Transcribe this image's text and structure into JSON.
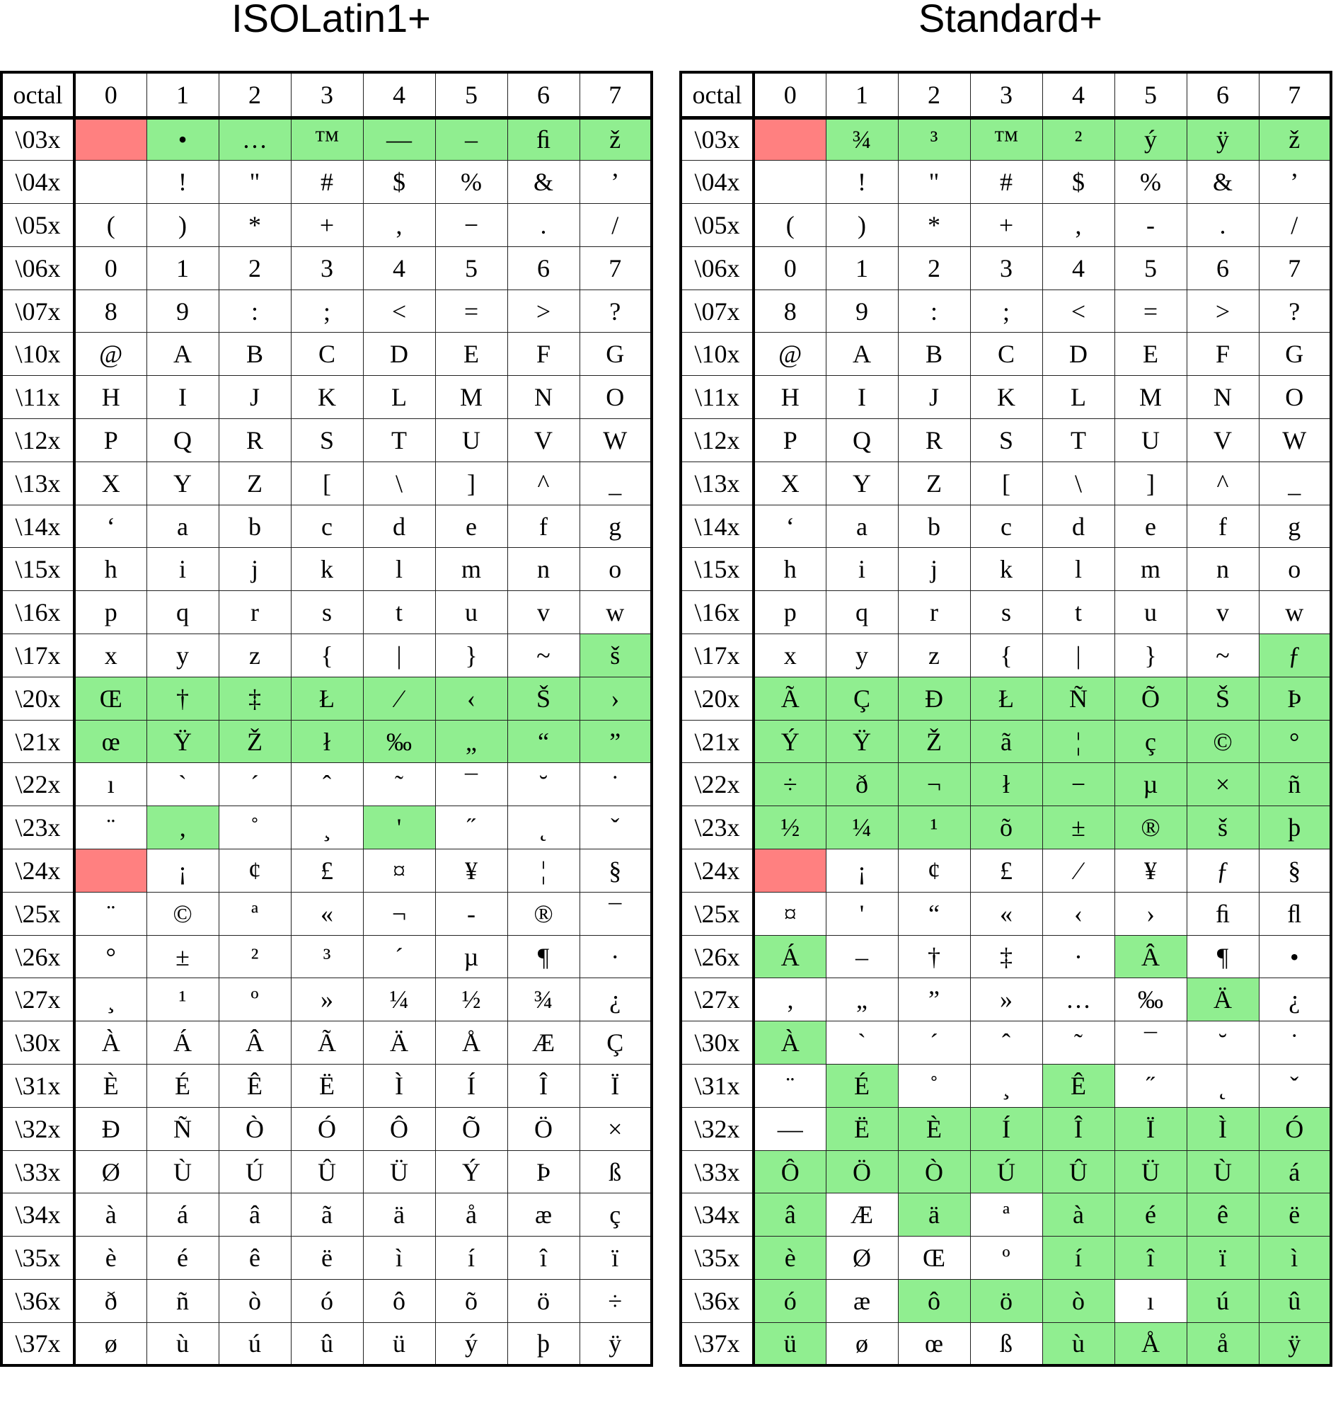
{
  "colors": {
    "added": "#90ee90",
    "undefined": "#ff8080"
  },
  "tables": [
    {
      "title": "ISOLatin1+",
      "header": [
        "octal",
        "0",
        "1",
        "2",
        "3",
        "4",
        "5",
        "6",
        "7"
      ],
      "rows": [
        {
          "label": "\\03x",
          "cells": [
            "",
            "•",
            "…",
            "™",
            "—",
            "–",
            "ﬁ",
            "ž"
          ],
          "mark": "rggggggg"
        },
        {
          "label": "\\04x",
          "cells": [
            "",
            "!",
            "\"",
            "#",
            "$",
            "%",
            "&",
            "’"
          ],
          "mark": "........"
        },
        {
          "label": "\\05x",
          "cells": [
            "(",
            ")",
            "*",
            "+",
            ",",
            "−",
            ".",
            "/"
          ],
          "mark": "........"
        },
        {
          "label": "\\06x",
          "cells": [
            "0",
            "1",
            "2",
            "3",
            "4",
            "5",
            "6",
            "7"
          ],
          "mark": "........"
        },
        {
          "label": "\\07x",
          "cells": [
            "8",
            "9",
            ":",
            ";",
            "<",
            "=",
            ">",
            "?"
          ],
          "mark": "........"
        },
        {
          "label": "\\10x",
          "cells": [
            "@",
            "A",
            "B",
            "C",
            "D",
            "E",
            "F",
            "G"
          ],
          "mark": "........"
        },
        {
          "label": "\\11x",
          "cells": [
            "H",
            "I",
            "J",
            "K",
            "L",
            "M",
            "N",
            "O"
          ],
          "mark": "........"
        },
        {
          "label": "\\12x",
          "cells": [
            "P",
            "Q",
            "R",
            "S",
            "T",
            "U",
            "V",
            "W"
          ],
          "mark": "........"
        },
        {
          "label": "\\13x",
          "cells": [
            "X",
            "Y",
            "Z",
            "[",
            "\\",
            "]",
            "^",
            "_"
          ],
          "mark": "........"
        },
        {
          "label": "\\14x",
          "cells": [
            "‘",
            "a",
            "b",
            "c",
            "d",
            "e",
            "f",
            "g"
          ],
          "mark": "........"
        },
        {
          "label": "\\15x",
          "cells": [
            "h",
            "i",
            "j",
            "k",
            "l",
            "m",
            "n",
            "o"
          ],
          "mark": "........"
        },
        {
          "label": "\\16x",
          "cells": [
            "p",
            "q",
            "r",
            "s",
            "t",
            "u",
            "v",
            "w"
          ],
          "mark": "........"
        },
        {
          "label": "\\17x",
          "cells": [
            "x",
            "y",
            "z",
            "{",
            "|",
            "}",
            "~",
            "š"
          ],
          "mark": ".......g"
        },
        {
          "label": "\\20x",
          "cells": [
            "Œ",
            "†",
            "‡",
            "Ł",
            "⁄",
            "‹",
            "Š",
            "›"
          ],
          "mark": "gggggggg"
        },
        {
          "label": "\\21x",
          "cells": [
            "œ",
            "Ÿ",
            "Ž",
            "ł",
            "‰",
            "„",
            "“",
            "”"
          ],
          "mark": "gggggggg"
        },
        {
          "label": "\\22x",
          "cells": [
            "ı",
            "`",
            "´",
            "ˆ",
            "˜",
            "¯",
            "˘",
            "˙"
          ],
          "mark": "........"
        },
        {
          "label": "\\23x",
          "cells": [
            "¨",
            "‚",
            "˚",
            "¸",
            "'",
            "˝",
            "˛",
            "ˇ"
          ],
          "mark": ".g..g..."
        },
        {
          "label": "\\24x",
          "cells": [
            "",
            "¡",
            "¢",
            "£",
            "¤",
            "¥",
            "¦",
            "§"
          ],
          "mark": "r......."
        },
        {
          "label": "\\25x",
          "cells": [
            "¨",
            "©",
            "ª",
            "«",
            "¬",
            "-",
            "®",
            "¯"
          ],
          "mark": "........"
        },
        {
          "label": "\\26x",
          "cells": [
            "°",
            "±",
            "²",
            "³",
            "´",
            "µ",
            "¶",
            "·"
          ],
          "mark": "........"
        },
        {
          "label": "\\27x",
          "cells": [
            "¸",
            "¹",
            "º",
            "»",
            "¼",
            "½",
            "¾",
            "¿"
          ],
          "mark": "........"
        },
        {
          "label": "\\30x",
          "cells": [
            "À",
            "Á",
            "Â",
            "Ã",
            "Ä",
            "Å",
            "Æ",
            "Ç"
          ],
          "mark": "........"
        },
        {
          "label": "\\31x",
          "cells": [
            "È",
            "É",
            "Ê",
            "Ë",
            "Ì",
            "Í",
            "Î",
            "Ï"
          ],
          "mark": "........"
        },
        {
          "label": "\\32x",
          "cells": [
            "Ð",
            "Ñ",
            "Ò",
            "Ó",
            "Ô",
            "Õ",
            "Ö",
            "×"
          ],
          "mark": "........"
        },
        {
          "label": "\\33x",
          "cells": [
            "Ø",
            "Ù",
            "Ú",
            "Û",
            "Ü",
            "Ý",
            "Þ",
            "ß"
          ],
          "mark": "........"
        },
        {
          "label": "\\34x",
          "cells": [
            "à",
            "á",
            "â",
            "ã",
            "ä",
            "å",
            "æ",
            "ç"
          ],
          "mark": "........"
        },
        {
          "label": "\\35x",
          "cells": [
            "è",
            "é",
            "ê",
            "ë",
            "ì",
            "í",
            "î",
            "ï"
          ],
          "mark": "........"
        },
        {
          "label": "\\36x",
          "cells": [
            "ð",
            "ñ",
            "ò",
            "ó",
            "ô",
            "õ",
            "ö",
            "÷"
          ],
          "mark": "........"
        },
        {
          "label": "\\37x",
          "cells": [
            "ø",
            "ù",
            "ú",
            "û",
            "ü",
            "ý",
            "þ",
            "ÿ"
          ],
          "mark": "........"
        }
      ]
    },
    {
      "title": "Standard+",
      "header": [
        "octal",
        "0",
        "1",
        "2",
        "3",
        "4",
        "5",
        "6",
        "7"
      ],
      "rows": [
        {
          "label": "\\03x",
          "cells": [
            "",
            "¾",
            "³",
            "™",
            "²",
            "ý",
            "ÿ",
            "ž"
          ],
          "mark": "rggggggg"
        },
        {
          "label": "\\04x",
          "cells": [
            "",
            "!",
            "\"",
            "#",
            "$",
            "%",
            "&",
            "’"
          ],
          "mark": "........"
        },
        {
          "label": "\\05x",
          "cells": [
            "(",
            ")",
            "*",
            "+",
            ",",
            "-",
            ".",
            "/"
          ],
          "mark": "........"
        },
        {
          "label": "\\06x",
          "cells": [
            "0",
            "1",
            "2",
            "3",
            "4",
            "5",
            "6",
            "7"
          ],
          "mark": "........"
        },
        {
          "label": "\\07x",
          "cells": [
            "8",
            "9",
            ":",
            ";",
            "<",
            "=",
            ">",
            "?"
          ],
          "mark": "........"
        },
        {
          "label": "\\10x",
          "cells": [
            "@",
            "A",
            "B",
            "C",
            "D",
            "E",
            "F",
            "G"
          ],
          "mark": "........"
        },
        {
          "label": "\\11x",
          "cells": [
            "H",
            "I",
            "J",
            "K",
            "L",
            "M",
            "N",
            "O"
          ],
          "mark": "........"
        },
        {
          "label": "\\12x",
          "cells": [
            "P",
            "Q",
            "R",
            "S",
            "T",
            "U",
            "V",
            "W"
          ],
          "mark": "........"
        },
        {
          "label": "\\13x",
          "cells": [
            "X",
            "Y",
            "Z",
            "[",
            "\\",
            "]",
            "^",
            "_"
          ],
          "mark": "........"
        },
        {
          "label": "\\14x",
          "cells": [
            "‘",
            "a",
            "b",
            "c",
            "d",
            "e",
            "f",
            "g"
          ],
          "mark": "........"
        },
        {
          "label": "\\15x",
          "cells": [
            "h",
            "i",
            "j",
            "k",
            "l",
            "m",
            "n",
            "o"
          ],
          "mark": "........"
        },
        {
          "label": "\\16x",
          "cells": [
            "p",
            "q",
            "r",
            "s",
            "t",
            "u",
            "v",
            "w"
          ],
          "mark": "........"
        },
        {
          "label": "\\17x",
          "cells": [
            "x",
            "y",
            "z",
            "{",
            "|",
            "}",
            "~",
            "ƒ"
          ],
          "mark": ".......g"
        },
        {
          "label": "\\20x",
          "cells": [
            "Ã",
            "Ç",
            "Ð",
            "Ł",
            "Ñ",
            "Õ",
            "Š",
            "Þ"
          ],
          "mark": "gggggggg"
        },
        {
          "label": "\\21x",
          "cells": [
            "Ý",
            "Ÿ",
            "Ž",
            "ã",
            "¦",
            "ç",
            "©",
            "°"
          ],
          "mark": "gggggggg"
        },
        {
          "label": "\\22x",
          "cells": [
            "÷",
            "ð",
            "¬",
            "ł",
            "−",
            "µ",
            "×",
            "ñ"
          ],
          "mark": "gggggggg"
        },
        {
          "label": "\\23x",
          "cells": [
            "½",
            "¼",
            "¹",
            "õ",
            "±",
            "®",
            "š",
            "þ"
          ],
          "mark": "gggggggg"
        },
        {
          "label": "\\24x",
          "cells": [
            "",
            "¡",
            "¢",
            "£",
            "⁄",
            "¥",
            "ƒ",
            "§"
          ],
          "mark": "r......."
        },
        {
          "label": "\\25x",
          "cells": [
            "¤",
            "'",
            "“",
            "«",
            "‹",
            "›",
            "ﬁ",
            "ﬂ"
          ],
          "mark": "........"
        },
        {
          "label": "\\26x",
          "cells": [
            "Á",
            "–",
            "†",
            "‡",
            "·",
            "Â",
            "¶",
            "•"
          ],
          "mark": "g....g.."
        },
        {
          "label": "\\27x",
          "cells": [
            "‚",
            "„",
            "”",
            "»",
            "…",
            "‰",
            "Ä",
            "¿"
          ],
          "mark": "......g."
        },
        {
          "label": "\\30x",
          "cells": [
            "À",
            "`",
            "´",
            "ˆ",
            "˜",
            "¯",
            "˘",
            "˙"
          ],
          "mark": "g......."
        },
        {
          "label": "\\31x",
          "cells": [
            "¨",
            "É",
            "˚",
            "¸",
            "Ê",
            "˝",
            "˛",
            "ˇ"
          ],
          "mark": ".g..g..."
        },
        {
          "label": "\\32x",
          "cells": [
            "—",
            "Ë",
            "È",
            "Í",
            "Î",
            "Ï",
            "Ì",
            "Ó"
          ],
          "mark": ".ggggggg"
        },
        {
          "label": "\\33x",
          "cells": [
            "Ô",
            "Ö",
            "Ò",
            "Ú",
            "Û",
            "Ü",
            "Ù",
            "á"
          ],
          "mark": "gggggggg"
        },
        {
          "label": "\\34x",
          "cells": [
            "â",
            "Æ",
            "ä",
            "ª",
            "à",
            "é",
            "ê",
            "ë"
          ],
          "mark": "g.g.gggg"
        },
        {
          "label": "\\35x",
          "cells": [
            "è",
            "Ø",
            "Œ",
            "º",
            "í",
            "î",
            "ï",
            "ì"
          ],
          "mark": "g...gggg"
        },
        {
          "label": "\\36x",
          "cells": [
            "ó",
            "æ",
            "ô",
            "ö",
            "ò",
            "ı",
            "ú",
            "û"
          ],
          "mark": "g.ggg.gg"
        },
        {
          "label": "\\37x",
          "cells": [
            "ü",
            "ø",
            "œ",
            "ß",
            "ù",
            "Å",
            "å",
            "ÿ"
          ],
          "mark": "g...gggg"
        }
      ]
    }
  ]
}
